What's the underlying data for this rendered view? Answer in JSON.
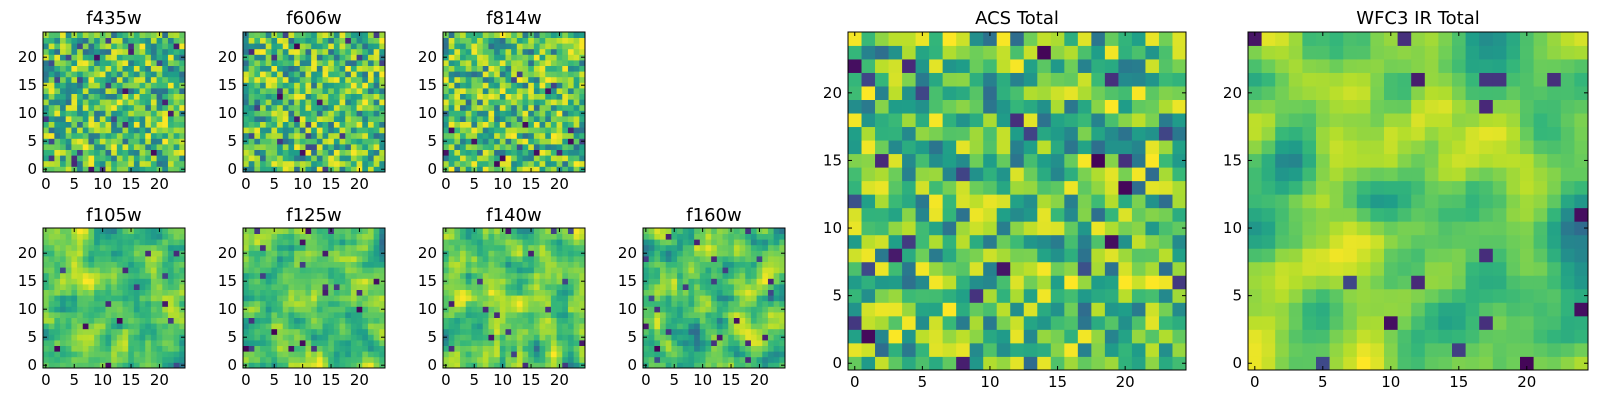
{
  "chart_data": [
    {
      "id": "f435w",
      "type": "heatmap",
      "title": "f435w",
      "grid_size": 25,
      "xlim": [
        0,
        24
      ],
      "ylim": [
        0,
        24
      ],
      "x_ticks": [
        0,
        5,
        10,
        15,
        20
      ],
      "y_ticks": [
        0,
        5,
        10,
        15,
        20
      ],
      "colormap": "viridis",
      "noise_seed": 11,
      "smoothing": 0
    },
    {
      "id": "f606w",
      "type": "heatmap",
      "title": "f606w",
      "grid_size": 25,
      "xlim": [
        0,
        24
      ],
      "ylim": [
        0,
        24
      ],
      "x_ticks": [
        0,
        5,
        10,
        15,
        20
      ],
      "y_ticks": [
        0,
        5,
        10,
        15,
        20
      ],
      "colormap": "viridis",
      "noise_seed": 23,
      "smoothing": 0
    },
    {
      "id": "f814w",
      "type": "heatmap",
      "title": "f814w",
      "grid_size": 25,
      "xlim": [
        0,
        24
      ],
      "ylim": [
        0,
        24
      ],
      "x_ticks": [
        0,
        5,
        10,
        15,
        20
      ],
      "y_ticks": [
        0,
        5,
        10,
        15,
        20
      ],
      "colormap": "viridis",
      "noise_seed": 37,
      "smoothing": 0
    },
    {
      "id": "f105w",
      "type": "heatmap",
      "title": "f105w",
      "grid_size": 25,
      "xlim": [
        0,
        24
      ],
      "ylim": [
        0,
        24
      ],
      "x_ticks": [
        0,
        5,
        10,
        15,
        20
      ],
      "y_ticks": [
        0,
        5,
        10,
        15,
        20
      ],
      "colormap": "viridis",
      "noise_seed": 41,
      "smoothing": 1
    },
    {
      "id": "f125w",
      "type": "heatmap",
      "title": "f125w",
      "grid_size": 25,
      "xlim": [
        0,
        24
      ],
      "ylim": [
        0,
        24
      ],
      "x_ticks": [
        0,
        5,
        10,
        15,
        20
      ],
      "y_ticks": [
        0,
        5,
        10,
        15,
        20
      ],
      "colormap": "viridis",
      "noise_seed": 53,
      "smoothing": 1
    },
    {
      "id": "f140w",
      "type": "heatmap",
      "title": "f140w",
      "grid_size": 25,
      "xlim": [
        0,
        24
      ],
      "ylim": [
        0,
        24
      ],
      "x_ticks": [
        0,
        5,
        10,
        15,
        20
      ],
      "y_ticks": [
        0,
        5,
        10,
        15,
        20
      ],
      "colormap": "viridis",
      "noise_seed": 67,
      "smoothing": 1
    },
    {
      "id": "f160w",
      "type": "heatmap",
      "title": "f160w",
      "grid_size": 25,
      "xlim": [
        0,
        24
      ],
      "ylim": [
        0,
        24
      ],
      "x_ticks": [
        0,
        5,
        10,
        15,
        20
      ],
      "y_ticks": [
        0,
        5,
        10,
        15,
        20
      ],
      "colormap": "viridis",
      "noise_seed": 79,
      "smoothing": 1
    },
    {
      "id": "acs-total",
      "type": "heatmap",
      "title": "ACS Total",
      "grid_size": 25,
      "xlim": [
        0,
        24
      ],
      "ylim": [
        0,
        24
      ],
      "x_ticks": [
        0,
        5,
        10,
        15,
        20
      ],
      "y_ticks": [
        0,
        5,
        10,
        15,
        20
      ],
      "colormap": "viridis",
      "noise_seed": 97,
      "smoothing": 0
    },
    {
      "id": "wfc3-ir-total",
      "type": "heatmap",
      "title": "WFC3 IR Total",
      "grid_size": 25,
      "xlim": [
        0,
        24
      ],
      "ylim": [
        0,
        24
      ],
      "x_ticks": [
        0,
        5,
        10,
        15,
        20
      ],
      "y_ticks": [
        0,
        5,
        10,
        15,
        20
      ],
      "colormap": "viridis",
      "noise_seed": 113,
      "smoothing": 2
    }
  ]
}
